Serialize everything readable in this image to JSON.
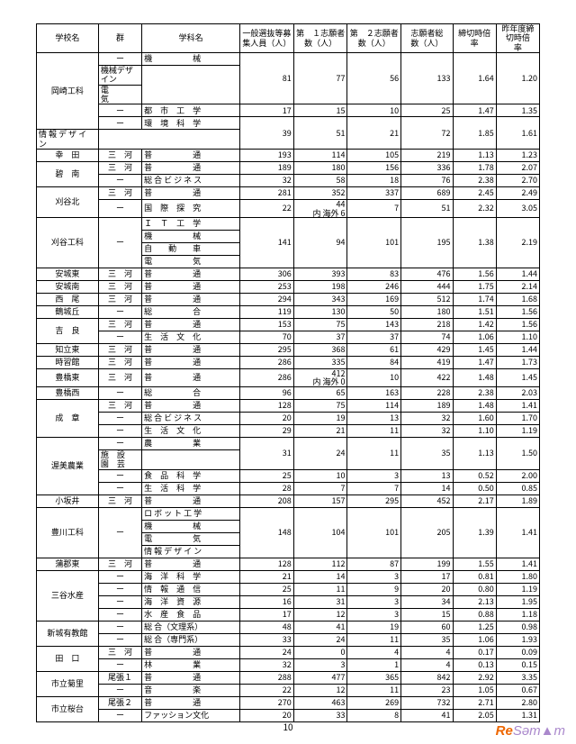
{
  "headers": [
    "学校名",
    "群",
    "学科名",
    "一般選抜等募集人員（人）",
    "第　１志願者数（人）",
    "第　２志願者数（人）",
    "志願者総　数（人）",
    "締切時倍　率",
    "昨年度締切時倍　率"
  ],
  "logo": {
    "re": "Re",
    "se": "Səm▲m"
  },
  "pgnum": "10",
  "rows": [
    {
      "school": "岡崎工科",
      "rs": 5,
      "gun": "ー",
      "gr": 1,
      "dep": "機　　　　　械",
      "d": [
        81,
        77,
        56,
        133,
        "1.64",
        "1.20"
      ],
      "dr": 3
    },
    {
      "dep": "機械デザイン"
    },
    {
      "dep": "電　　　　　気"
    },
    {
      "gun": "ー",
      "gr": 1,
      "dep": "都　市　工　学",
      "d": [
        17,
        15,
        10,
        25,
        "1.47",
        "1.35"
      ]
    },
    {
      "gun": "ー",
      "gr": 1,
      "dep": "環　境　科　学",
      "d": [
        39,
        51,
        21,
        72,
        "1.85",
        "1.61"
      ],
      "dr": 2
    },
    {
      "dep": "情 報 デ ザ イ ン"
    },
    {
      "school": "幸　田",
      "rs": 1,
      "gun": "三　河",
      "gr": 1,
      "dep": "普　　　　　通",
      "d": [
        193,
        114,
        105,
        219,
        "1.13",
        "1.23"
      ]
    },
    {
      "school": "碧　南",
      "rs": 2,
      "gun": "三　河",
      "gr": 1,
      "dep": "普　　　　　通",
      "d": [
        189,
        180,
        156,
        336,
        "1.78",
        "2.07"
      ]
    },
    {
      "gun": "ー",
      "gr": 1,
      "dep": "総 合 ビ ジ ネ ス",
      "d": [
        32,
        58,
        18,
        76,
        "2.38",
        "2.70"
      ]
    },
    {
      "school": "刈谷北",
      "rs": 2,
      "gun": "三　河",
      "gr": 1,
      "dep": "普　　　　　通",
      "d": [
        281,
        352,
        337,
        689,
        "2.45",
        "2.49"
      ]
    },
    {
      "gun": "ー",
      "gr": 1,
      "dep": "国　際　探　究",
      "d": [
        22,
        "44\n内 海外 6",
        7,
        51,
        "2.32",
        "3.05"
      ]
    },
    {
      "school": "刈谷工科",
      "rs": 4,
      "gun": "ー",
      "gr": 4,
      "dep": "Ｉ　Ｔ　工　学",
      "d": [
        141,
        94,
        101,
        195,
        "1.38",
        "2.19"
      ],
      "dr": 4
    },
    {
      "dep": "機　　　　　械"
    },
    {
      "dep": "自　　動　　車"
    },
    {
      "dep": "電　　　　　気"
    },
    {
      "school": "安城東",
      "rs": 1,
      "gun": "三　河",
      "gr": 1,
      "dep": "普　　　　　通",
      "d": [
        306,
        393,
        83,
        476,
        "1.56",
        "1.44"
      ]
    },
    {
      "school": "安城南",
      "rs": 1,
      "gun": "三　河",
      "gr": 1,
      "dep": "普　　　　　通",
      "d": [
        253,
        198,
        246,
        444,
        "1.75",
        "2.14"
      ]
    },
    {
      "school": "西　尾",
      "rs": 1,
      "gun": "三　河",
      "gr": 1,
      "dep": "普　　　　　通",
      "d": [
        294,
        343,
        169,
        512,
        "1.74",
        "1.68"
      ]
    },
    {
      "school": "鶴城丘",
      "rs": 1,
      "gun": "ー",
      "gr": 1,
      "dep": "総　　　　　合",
      "d": [
        119,
        130,
        50,
        180,
        "1.51",
        "1.56"
      ]
    },
    {
      "school": "吉　良",
      "rs": 2,
      "gun": "三　河",
      "gr": 1,
      "dep": "普　　　　　通",
      "d": [
        153,
        75,
        143,
        218,
        "1.42",
        "1.56"
      ]
    },
    {
      "gun": "ー",
      "gr": 1,
      "dep": "生　活　文　化",
      "d": [
        70,
        37,
        37,
        74,
        "1.06",
        "1.10"
      ]
    },
    {
      "school": "知立東",
      "rs": 1,
      "gun": "三　河",
      "gr": 1,
      "dep": "普　　　　　通",
      "d": [
        295,
        368,
        61,
        429,
        "1.45",
        "1.44"
      ]
    },
    {
      "school": "時習館",
      "rs": 1,
      "gun": "三　河",
      "gr": 1,
      "dep": "普　　　　　通",
      "d": [
        286,
        335,
        84,
        419,
        "1.47",
        "1.73"
      ]
    },
    {
      "school": "豊橋東",
      "rs": 1,
      "gun": "三　河",
      "gr": 1,
      "dep": "普　　　　　通",
      "d": [
        286,
        "412\n内 海外 0",
        10,
        422,
        "1.48",
        "1.45"
      ]
    },
    {
      "school": "豊橋西",
      "rs": 1,
      "gun": "ー",
      "gr": 1,
      "dep": "総　　　　　合",
      "d": [
        96,
        65,
        163,
        228,
        "2.38",
        "2.03"
      ]
    },
    {
      "school": "成　章",
      "rs": 3,
      "gun": "三　河",
      "gr": 1,
      "dep": "普　　　　　通",
      "d": [
        128,
        75,
        114,
        189,
        "1.48",
        "1.41"
      ]
    },
    {
      "gun": "ー",
      "gr": 1,
      "dep": "総 合 ビ ジ ネ ス",
      "d": [
        20,
        19,
        13,
        32,
        "1.60",
        "1.70"
      ]
    },
    {
      "gun": "ー",
      "gr": 1,
      "dep": "生　活　文　化",
      "d": [
        29,
        21,
        11,
        32,
        "1.10",
        "1.19"
      ]
    },
    {
      "school": "渥美農業",
      "rs": 4,
      "gun": "ー",
      "gr": 1,
      "dep": "農　　　　　業",
      "d": [
        31,
        24,
        11,
        35,
        "1.13",
        "1.50"
      ],
      "dr": 2
    },
    {
      "dep": "施　設　園　芸"
    },
    {
      "gun": "ー",
      "gr": 1,
      "dep": "食　品　科　学",
      "d": [
        25,
        10,
        3,
        13,
        "0.52",
        "2.00"
      ]
    },
    {
      "gun": "ー",
      "gr": 1,
      "dep": "生　活　科　学",
      "d": [
        28,
        7,
        7,
        14,
        "0.50",
        "0.85"
      ]
    },
    {
      "school": "小坂井",
      "rs": 1,
      "gun": "三　河",
      "gr": 1,
      "dep": "普　　　　　通",
      "d": [
        208,
        157,
        295,
        452,
        "2.17",
        "1.89"
      ]
    },
    {
      "school": "豊川工科",
      "rs": 4,
      "gun": "ー",
      "gr": 4,
      "dep": "ロ ボ ッ ト 工 学",
      "d": [
        148,
        104,
        101,
        205,
        "1.39",
        "1.41"
      ],
      "dr": 4
    },
    {
      "dep": "機　　　　　械"
    },
    {
      "dep": "電　　　　　気"
    },
    {
      "dep": "情 報 デ ザ イ ン"
    },
    {
      "school": "蒲郡東",
      "rs": 1,
      "gun": "三　河",
      "gr": 1,
      "dep": "普　　　　　通",
      "d": [
        128,
        112,
        87,
        199,
        "1.55",
        "1.41"
      ]
    },
    {
      "school": "三谷水産",
      "rs": 4,
      "gun": "ー",
      "gr": 1,
      "dep": "海　洋　科　学",
      "d": [
        21,
        14,
        3,
        17,
        "0.81",
        "1.80"
      ]
    },
    {
      "gun": "ー",
      "gr": 1,
      "dep": "情　報　通　信",
      "d": [
        25,
        11,
        9,
        20,
        "0.80",
        "1.19"
      ]
    },
    {
      "gun": "ー",
      "gr": 1,
      "dep": "海　洋　資　源",
      "d": [
        16,
        31,
        3,
        34,
        "2.13",
        "1.95"
      ]
    },
    {
      "gun": "ー",
      "gr": 1,
      "dep": "水　産　食　品",
      "d": [
        17,
        12,
        3,
        15,
        "0.88",
        "1.18"
      ]
    },
    {
      "school": "新城有教館",
      "rs": 2,
      "gun": "ー",
      "gr": 1,
      "dep": "総 合（文理系）",
      "d": [
        48,
        41,
        19,
        60,
        "1.25",
        "0.98"
      ]
    },
    {
      "gun": "ー",
      "gr": 1,
      "dep": "総 合（専門系）",
      "d": [
        33,
        24,
        11,
        35,
        "1.06",
        "1.93"
      ]
    },
    {
      "school": "田　口",
      "rs": 2,
      "gun": "三　河",
      "gr": 1,
      "dep": "普　　　　　通",
      "d": [
        24,
        0,
        4,
        4,
        "0.17",
        "0.09"
      ]
    },
    {
      "gun": "ー",
      "gr": 1,
      "dep": "林　　　　　業",
      "d": [
        32,
        3,
        1,
        4,
        "0.13",
        "0.15"
      ]
    },
    {
      "school": "市立菊里",
      "rs": 2,
      "gun": "尾張１",
      "gr": 1,
      "dep": "普　　　　　通",
      "d": [
        288,
        477,
        365,
        842,
        "2.92",
        "3.35"
      ]
    },
    {
      "gun": "ー",
      "gr": 1,
      "dep": "音　　　　　楽",
      "d": [
        22,
        12,
        11,
        23,
        "1.05",
        "0.67"
      ]
    },
    {
      "school": "市立桜台",
      "rs": 2,
      "gun": "尾張２",
      "gr": 1,
      "dep": "普　　　　　通",
      "d": [
        270,
        463,
        269,
        732,
        "2.71",
        "2.80"
      ]
    },
    {
      "gun": "ー",
      "gr": 1,
      "dep": "ファッション文化",
      "d": [
        20,
        33,
        8,
        41,
        "2.05",
        "1.31"
      ]
    }
  ]
}
